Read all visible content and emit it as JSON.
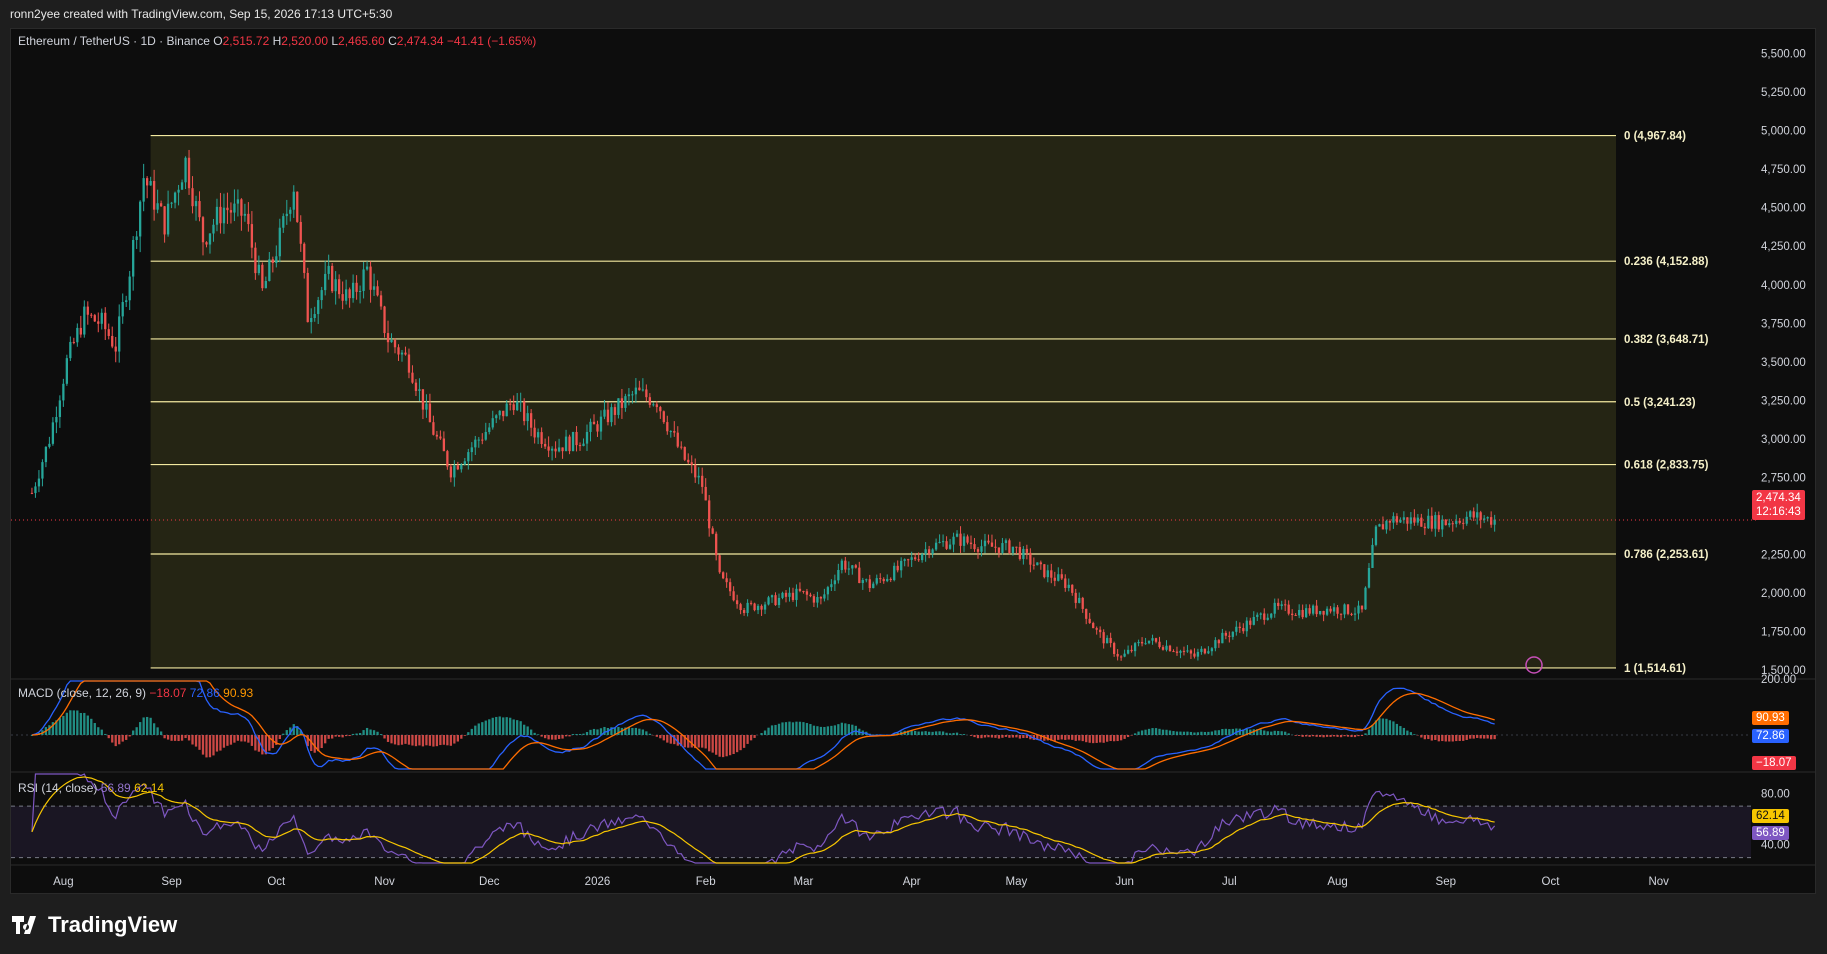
{
  "header": {
    "attribution": "ronn2yee created with TradingView.com, Sep 15, 2026 17:13 UTC+5:30"
  },
  "symbol": {
    "name": "Ethereum / TetherUS · 1D · Binance",
    "o_label": "O",
    "o": "2,515.72",
    "h_label": "H",
    "h": "2,520.00",
    "l_label": "L",
    "l": "2,465.60",
    "c_label": "C",
    "c": "2,474.34",
    "change": "−41.41 (−1.65%)"
  },
  "last_price": {
    "value": "2,474.34",
    "countdown": "12:16:43",
    "color": "#f23645"
  },
  "macd": {
    "label": "MACD (close, 12, 26, 9)",
    "hist": "−18.07",
    "macd_val": "72.86",
    "signal_val": "90.93",
    "hist_color": "#f23645",
    "macd_color": "#2962ff",
    "signal_color": "#ff6d00"
  },
  "rsi": {
    "label": "RSI (14, close)",
    "rsi_val": "56.89",
    "ma_val": "62.14",
    "rsi_color": "#7e57c2",
    "ma_color": "#f7c600"
  },
  "brand": {
    "name": "TradingView"
  },
  "chart_data": {
    "type": "candlestick",
    "title": "Ethereum / TetherUS · 1D · Binance",
    "y_ticks": [
      "5,500.00",
      "5,250.00",
      "5,000.00",
      "4,750.00",
      "4,500.00",
      "4,250.00",
      "4,000.00",
      "3,750.00",
      "3,500.00",
      "3,250.00",
      "3,000.00",
      "2,750.00",
      "2,250.00",
      "2,000.00",
      "1,750.00",
      "1,500.00"
    ],
    "ylim": [
      1430,
      5620
    ],
    "x_ticks": [
      "Aug",
      "Sep",
      "Oct",
      "Nov",
      "Dec",
      "2026",
      "Feb",
      "Mar",
      "Apr",
      "May",
      "Jun",
      "Jul",
      "Aug",
      "Sep",
      "Oct",
      "Nov"
    ],
    "fib_levels": [
      {
        "ratio": "0",
        "price": 4967.84,
        "label": "0 (4,967.84)"
      },
      {
        "ratio": "0.236",
        "price": 4152.88,
        "label": "0.236 (4,152.88)"
      },
      {
        "ratio": "0.382",
        "price": 3648.71,
        "label": "0.382 (3,648.71)"
      },
      {
        "ratio": "0.5",
        "price": 3241.23,
        "label": "0.5 (3,241.23)"
      },
      {
        "ratio": "0.618",
        "price": 2833.75,
        "label": "0.618 (2,833.75)"
      },
      {
        "ratio": "0.786",
        "price": 2253.61,
        "label": "0.786 (2,253.61)"
      },
      {
        "ratio": "1",
        "price": 1514.61,
        "label": "1 (1,514.61)"
      }
    ],
    "price_path": [
      {
        "date": "2025-07-23",
        "close": 2650
      },
      {
        "date": "2025-07-28",
        "close": 3000
      },
      {
        "date": "2025-08-02",
        "close": 3500
      },
      {
        "date": "2025-08-07",
        "close": 3800
      },
      {
        "date": "2025-08-12",
        "close": 3750
      },
      {
        "date": "2025-08-16",
        "close": 3600
      },
      {
        "date": "2025-08-20",
        "close": 4100
      },
      {
        "date": "2025-08-24",
        "close": 4700
      },
      {
        "date": "2025-08-30",
        "close": 4400
      },
      {
        "date": "2025-09-05",
        "close": 4800
      },
      {
        "date": "2025-09-10",
        "close": 4300
      },
      {
        "date": "2025-09-16",
        "close": 4500
      },
      {
        "date": "2025-09-22",
        "close": 4450
      },
      {
        "date": "2025-09-27",
        "close": 3950
      },
      {
        "date": "2025-10-02",
        "close": 4300
      },
      {
        "date": "2025-10-06",
        "close": 4650
      },
      {
        "date": "2025-10-10",
        "close": 3800
      },
      {
        "date": "2025-10-16",
        "close": 4050
      },
      {
        "date": "2025-10-22",
        "close": 3900
      },
      {
        "date": "2025-10-27",
        "close": 4100
      },
      {
        "date": "2025-11-02",
        "close": 3650
      },
      {
        "date": "2025-11-08",
        "close": 3500
      },
      {
        "date": "2025-11-14",
        "close": 3100
      },
      {
        "date": "2025-11-20",
        "close": 2800
      },
      {
        "date": "2025-11-26",
        "close": 2950
      },
      {
        "date": "2025-12-02",
        "close": 3100
      },
      {
        "date": "2025-12-08",
        "close": 3250
      },
      {
        "date": "2025-12-14",
        "close": 3050
      },
      {
        "date": "2025-12-20",
        "close": 2950
      },
      {
        "date": "2025-12-27",
        "close": 3000
      },
      {
        "date": "2026-01-04",
        "close": 3150
      },
      {
        "date": "2026-01-12",
        "close": 3300
      },
      {
        "date": "2026-01-18",
        "close": 3250
      },
      {
        "date": "2026-01-25",
        "close": 2900
      },
      {
        "date": "2026-01-31",
        "close": 2700
      },
      {
        "date": "2026-02-05",
        "close": 2100
      },
      {
        "date": "2026-02-12",
        "close": 1900
      },
      {
        "date": "2026-02-20",
        "close": 1950
      },
      {
        "date": "2026-02-28",
        "close": 2000
      },
      {
        "date": "2026-03-06",
        "close": 1950
      },
      {
        "date": "2026-03-12",
        "close": 2200
      },
      {
        "date": "2026-03-20",
        "close": 2050
      },
      {
        "date": "2026-03-28",
        "close": 2150
      },
      {
        "date": "2026-04-06",
        "close": 2300
      },
      {
        "date": "2026-04-14",
        "close": 2350
      },
      {
        "date": "2026-04-22",
        "close": 2300
      },
      {
        "date": "2026-04-30",
        "close": 2300
      },
      {
        "date": "2026-05-08",
        "close": 2150
      },
      {
        "date": "2026-05-16",
        "close": 2050
      },
      {
        "date": "2026-05-24",
        "close": 1750
      },
      {
        "date": "2026-05-31",
        "close": 1580
      },
      {
        "date": "2026-06-07",
        "close": 1700
      },
      {
        "date": "2026-06-14",
        "close": 1650
      },
      {
        "date": "2026-06-21",
        "close": 1590
      },
      {
        "date": "2026-06-28",
        "close": 1700
      },
      {
        "date": "2026-07-06",
        "close": 1800
      },
      {
        "date": "2026-07-14",
        "close": 1900
      },
      {
        "date": "2026-07-22",
        "close": 1880
      },
      {
        "date": "2026-07-30",
        "close": 1900
      },
      {
        "date": "2026-08-08",
        "close": 1880
      },
      {
        "date": "2026-08-12",
        "close": 2400
      },
      {
        "date": "2026-08-16",
        "close": 2480
      },
      {
        "date": "2026-08-24",
        "close": 2470
      },
      {
        "date": "2026-09-01",
        "close": 2460
      },
      {
        "date": "2026-09-08",
        "close": 2500
      },
      {
        "date": "2026-09-15",
        "close": 2474.34
      }
    ],
    "macd_ticks": [
      "200.00"
    ],
    "rsi_ticks": [
      "80.00",
      "40.00"
    ],
    "rsi_bands": [
      70,
      30
    ]
  }
}
